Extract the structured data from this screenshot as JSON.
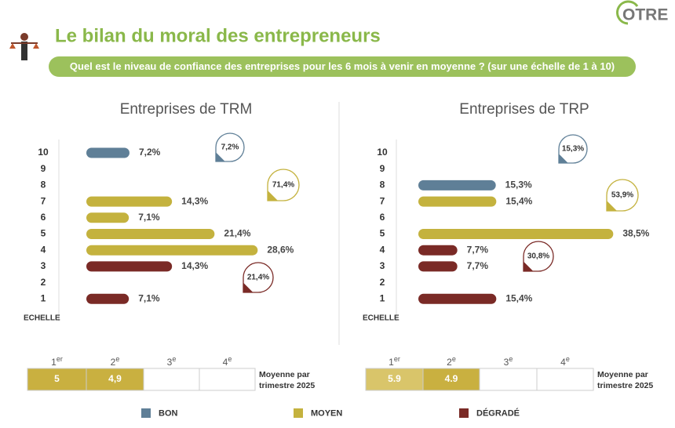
{
  "header": {
    "title": "Le bilan du moral des entrepreneurs",
    "subtitle": "Quel est le niveau de confiance des entreprises pour les 6 mois à venir en moyenne ? (sur une échelle de 1 à 10)",
    "logo": "OTRE"
  },
  "legend": [
    {
      "name": "BON",
      "color": "#5f7f97"
    },
    {
      "name": "MOYEN",
      "color": "#c4b23e"
    },
    {
      "name": "DÉGRADÉ",
      "color": "#7a2a26"
    }
  ],
  "chart_data": [
    {
      "type": "bar",
      "orientation": "horizontal",
      "title": "Entreprises de TRM",
      "y_label": "ECHELLE",
      "categories": [
        "10",
        "9",
        "8",
        "7",
        "6",
        "5",
        "4",
        "3",
        "2",
        "1"
      ],
      "values": [
        7.2,
        null,
        null,
        14.3,
        7.1,
        21.4,
        28.6,
        14.3,
        null,
        7.1
      ],
      "value_labels": [
        "7,2%",
        null,
        null,
        "14,3%",
        "7,1%",
        "21,4%",
        "28,6%",
        "14,3%",
        null,
        "7,1%"
      ],
      "colors": [
        "#5f7f97",
        null,
        null,
        "#c4b23e",
        "#c4b23e",
        "#c4b23e",
        "#c4b23e",
        "#7a2a26",
        null,
        "#7a2a26"
      ],
      "xlim": [
        0,
        30
      ],
      "group_totals": {
        "values": [
          7.2,
          71.4,
          21.4
        ],
        "value_labels": [
          "7,2%",
          "71,4%",
          "21,4%"
        ]
      },
      "quarters": {
        "labels": [
          {
            "n": "1",
            "sup": "er"
          },
          {
            "n": "2",
            "sup": "e"
          },
          {
            "n": "3",
            "sup": "e"
          },
          {
            "n": "4",
            "sup": "e"
          }
        ],
        "values": [
          5,
          4.9,
          null,
          null
        ],
        "value_labels": [
          "5",
          "4,9",
          null,
          null
        ],
        "caption": [
          "Moyenne par",
          "trimestre 2025"
        ]
      }
    },
    {
      "type": "bar",
      "orientation": "horizontal",
      "title": "Entreprises de TRP",
      "y_label": "ECHELLE",
      "categories": [
        "10",
        "9",
        "8",
        "7",
        "6",
        "5",
        "4",
        "3",
        "2",
        "1"
      ],
      "values": [
        null,
        null,
        15.3,
        15.4,
        null,
        38.5,
        7.7,
        7.7,
        null,
        15.4
      ],
      "value_labels": [
        null,
        null,
        "15,3%",
        "15,4%",
        null,
        "38,5%",
        "7,7%",
        "7,7%",
        null,
        "15,4%"
      ],
      "colors": [
        null,
        null,
        "#5f7f97",
        "#c4b23e",
        null,
        "#c4b23e",
        "#7a2a26",
        "#7a2a26",
        null,
        "#7a2a26"
      ],
      "xlim": [
        0,
        40
      ],
      "group_totals": {
        "values": [
          15.3,
          53.9,
          30.8
        ],
        "value_labels": [
          "15,3%",
          "53,9%",
          "30,8%"
        ]
      },
      "quarters": {
        "labels": [
          {
            "n": "1",
            "sup": "er"
          },
          {
            "n": "2",
            "sup": "e"
          },
          {
            "n": "3",
            "sup": "e"
          },
          {
            "n": "4",
            "sup": "e"
          }
        ],
        "values": [
          5.9,
          4.9,
          null,
          null
        ],
        "value_labels": [
          "5.9",
          "4.9",
          null,
          null
        ],
        "caption": [
          "Moyenne par",
          "trimestre 2025"
        ]
      }
    }
  ]
}
